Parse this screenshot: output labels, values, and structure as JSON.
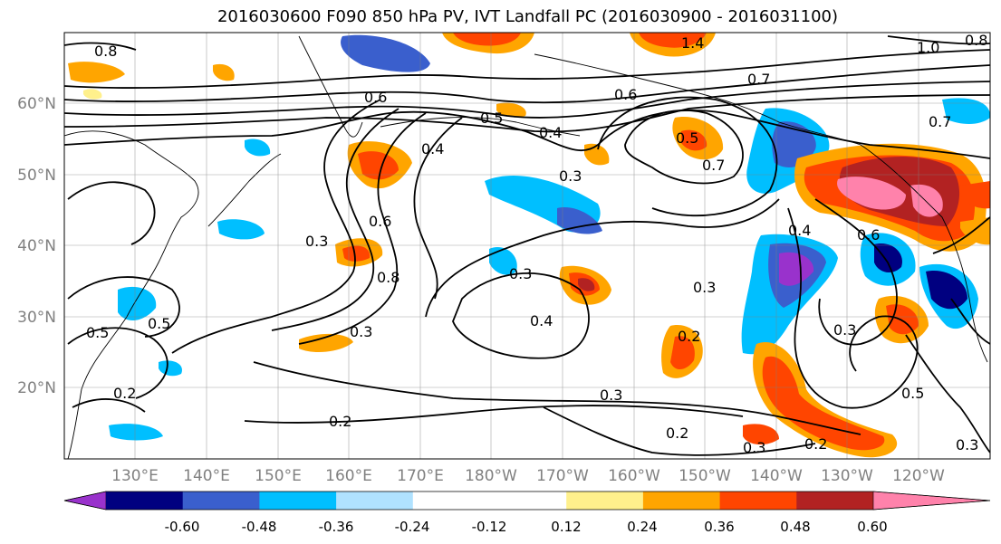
{
  "title": "2016030600 F090 850 hPa PV, IVT Landfall PC (2016030900 - 2016031100)",
  "lat_labels": [
    "60°N",
    "50°N",
    "40°N",
    "30°N",
    "20°N"
  ],
  "lon_labels": [
    "130°E",
    "140°E",
    "150°E",
    "160°E",
    "170°E",
    "180°W",
    "170°W",
    "160°W",
    "150°W",
    "140°W",
    "130°W",
    "120°W"
  ],
  "contour_labels": [
    "0.8",
    "0.6",
    "0.5",
    "1.4",
    "1.0",
    "0.8",
    "0.7",
    "0.4",
    "0.5",
    "0.3",
    "0.7",
    "0.6",
    "0.3",
    "0.4",
    "0.3",
    "0.8",
    "0.5",
    "0.5",
    "0.3",
    "0.3",
    "0.4",
    "0.2",
    "0.2",
    "0.3",
    "0.2",
    "0.2",
    "0.3",
    "0.2",
    "0.4",
    "0.6",
    "0.3",
    "0.5",
    "0.3",
    "0.7",
    "0.6"
  ],
  "colorbar": {
    "colors": [
      "#9932cc",
      "#000080",
      "#3a5fcd",
      "#00bfff",
      "#b0e2ff",
      "#ffffff",
      "#ffffff",
      "#fff08c",
      "#ffa500",
      "#ff4500",
      "#b22222",
      "#ff82ab"
    ],
    "tick_labels": [
      "-0.60",
      "-0.48",
      "-0.36",
      "-0.24",
      "-0.12",
      "0.12",
      "0.24",
      "0.36",
      "0.48",
      "0.60"
    ]
  }
}
